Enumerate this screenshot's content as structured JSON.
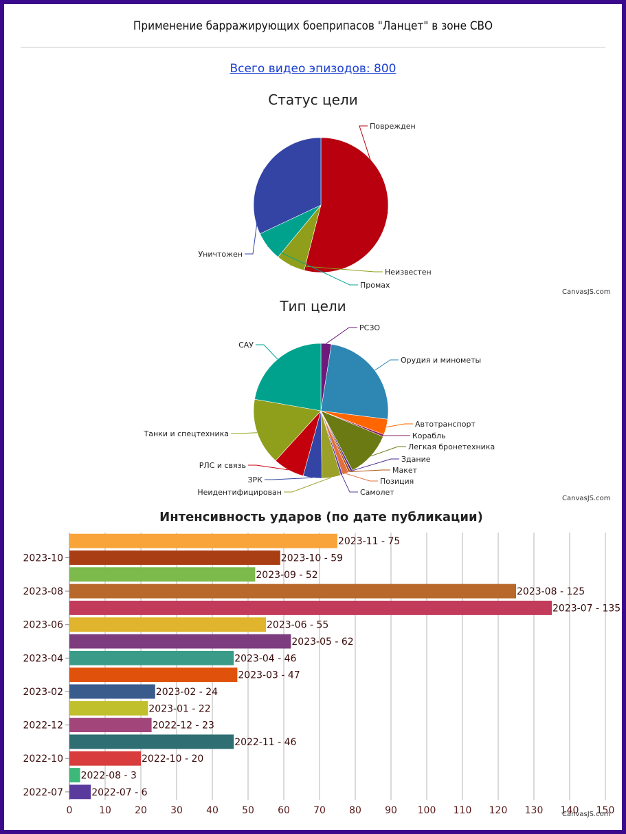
{
  "header": {
    "title": "Применение барражирующих боеприпасов \"Ланцет\" в зоне СВО",
    "total_link": "Всего видео эпизодов: 800"
  },
  "credit": "CanvasJS.com",
  "chart_data": [
    {
      "type": "pie",
      "title": "Статус цели",
      "slices": [
        {
          "label": "Поврежден",
          "value": 432,
          "color": "#b8000e"
        },
        {
          "label": "Неизвестен",
          "value": 56,
          "color": "#8f9f1b"
        },
        {
          "label": "Промах",
          "value": 56,
          "color": "#00a28e"
        },
        {
          "label": "Уничтожен",
          "value": 256,
          "color": "#3344a5"
        }
      ]
    },
    {
      "type": "pie",
      "title": "Тип цели",
      "slices": [
        {
          "label": "РСЗО",
          "value": 20,
          "color": "#6d1a7a"
        },
        {
          "label": "Орудия и минометы",
          "value": 196,
          "color": "#2e86b3"
        },
        {
          "label": "Автотранспорт",
          "value": 30,
          "color": "#ff6600"
        },
        {
          "label": "Корабль",
          "value": 4,
          "color": "#8a1a5c"
        },
        {
          "label": "Легкая бронетехника",
          "value": 88,
          "color": "#6b7a12"
        },
        {
          "label": "Здание",
          "value": 4,
          "color": "#4a2a8c"
        },
        {
          "label": "Макет",
          "value": 4,
          "color": "#b05010"
        },
        {
          "label": "Позиция",
          "value": 12,
          "color": "#e07040"
        },
        {
          "label": "Самолет",
          "value": 4,
          "color": "#5a3a9c"
        },
        {
          "label": "Неидентифицирован",
          "value": 36,
          "color": "#9aa028"
        },
        {
          "label": "ЗРК",
          "value": 36,
          "color": "#3344a5"
        },
        {
          "label": "РЛС и связь",
          "value": 60,
          "color": "#c4000c"
        },
        {
          "label": "Танки и спецтехника",
          "value": 128,
          "color": "#8f9f1b"
        },
        {
          "label": "САУ",
          "value": 178,
          "color": "#00a28e"
        }
      ]
    },
    {
      "type": "bar",
      "title": "Интенсивность ударов (по дате публикации)",
      "categories": [
        "2023-11",
        "2023-10",
        "2023-09",
        "2023-08",
        "2023-07",
        "2023-06",
        "2023-05",
        "2023-04",
        "2023-03",
        "2023-02",
        "2023-01",
        "2022-12",
        "2022-11",
        "2022-10",
        "2022-08",
        "2022-07"
      ],
      "values": [
        75,
        59,
        52,
        125,
        135,
        55,
        62,
        46,
        47,
        24,
        22,
        23,
        46,
        20,
        3,
        6
      ],
      "data_labels": [
        "2023-11 - 75",
        "2023-10 - 59",
        "2023-09 - 52",
        "2023-08 - 125",
        "2023-07 - 135",
        "2023-06 - 55",
        "2023-05 - 62",
        "2023-04 - 46",
        "2023-03 - 47",
        "2023-02 - 24",
        "2023-01 - 22",
        "2022-12 - 23",
        "2022-11 - 46",
        "2022-10 - 20",
        "2022-08 - 3",
        "2022-07 - 6"
      ],
      "colors": [
        "#f9a43a",
        "#a93e14",
        "#7bba4b",
        "#b8682a",
        "#c23b5a",
        "#e0b42c",
        "#7c3c7e",
        "#3a9c88",
        "#e0520c",
        "#3a5c8c",
        "#c0c02c",
        "#a2457a",
        "#2f6e72",
        "#d83c3c",
        "#3cb878",
        "#5a3a9c"
      ],
      "y_tick_labels": [
        "2023-10",
        "2023-08",
        "2023-06",
        "2023-04",
        "2023-02",
        "2022-12",
        "2022-10",
        "2022-07"
      ],
      "x_ticks": [
        0,
        10,
        20,
        30,
        40,
        50,
        60,
        70,
        80,
        90,
        100,
        110,
        120,
        130,
        140,
        150
      ],
      "xlim": [
        0,
        150
      ],
      "grid": true
    }
  ]
}
